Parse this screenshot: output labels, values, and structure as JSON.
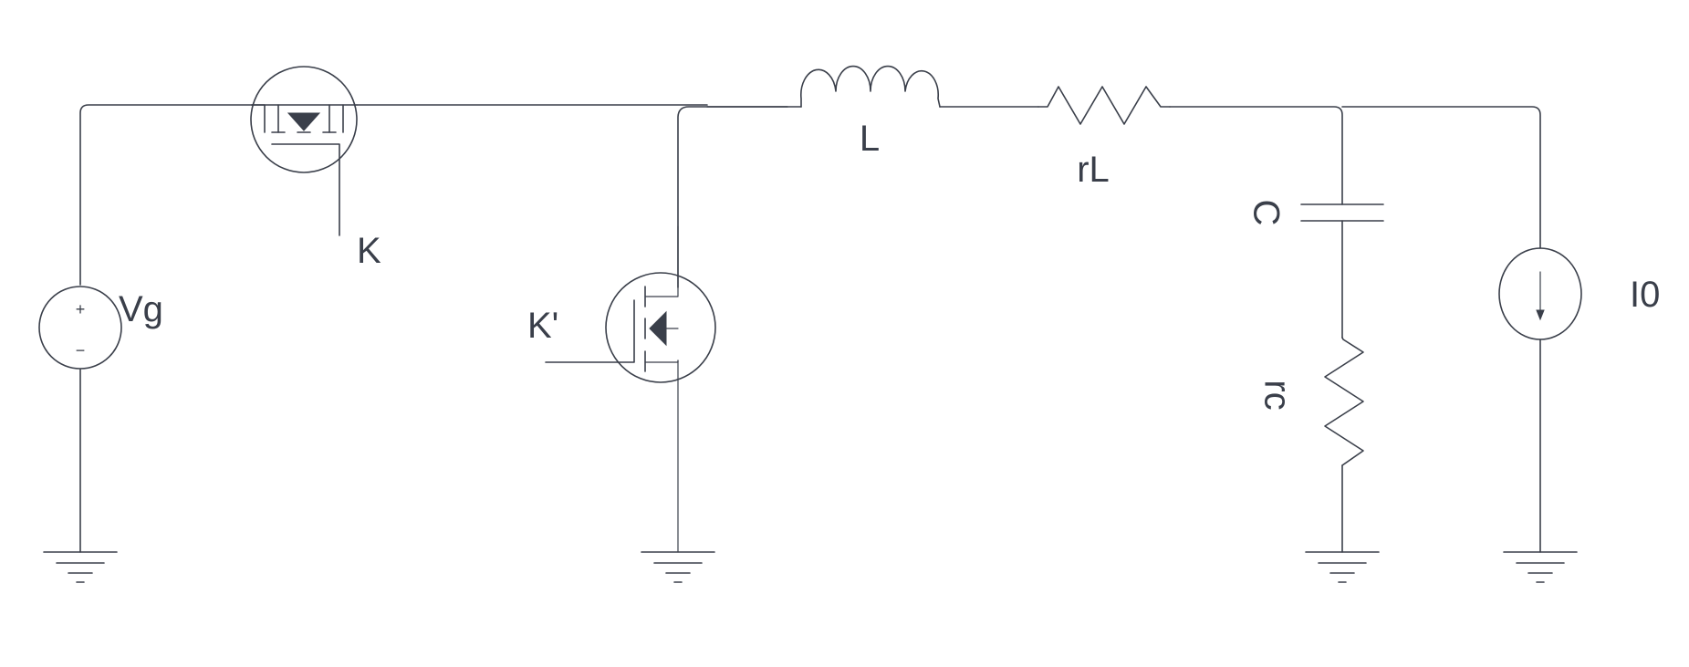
{
  "components": {
    "vg": {
      "label": "Vg",
      "plus": "+",
      "minus": "−"
    },
    "switch_k": {
      "label": "K"
    },
    "switch_k_prime": {
      "label": "K'"
    },
    "inductor": {
      "label": "L"
    },
    "resistor_l": {
      "label": "rL"
    },
    "capacitor": {
      "label": "C"
    },
    "resistor_c": {
      "label": "rc"
    },
    "current_source": {
      "label": "I0"
    }
  },
  "colors": {
    "stroke": "#3a3f4a",
    "background": "#ffffff"
  }
}
